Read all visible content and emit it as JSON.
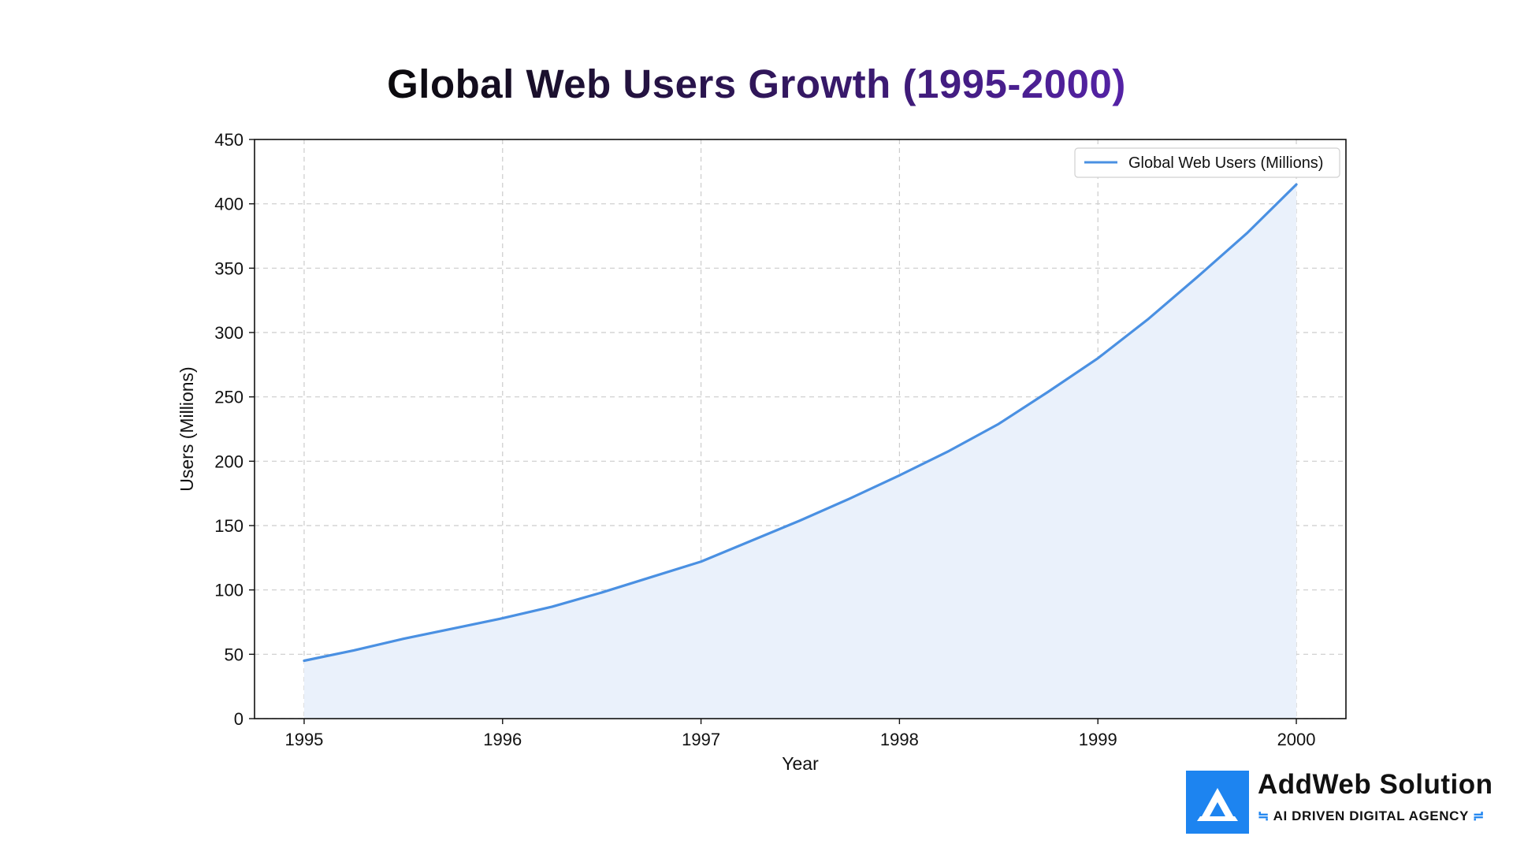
{
  "colors": {
    "line": "#4a90e2",
    "fill": "#eaf1fb",
    "grid": "#cccccc",
    "title_start": "#0a0a0a",
    "title_end": "#7b2ff7",
    "brand_blue": "#1d84f0"
  },
  "chart_data": {
    "type": "area",
    "title": "Global Web Users Growth (1995-2000)",
    "xlabel": "Year",
    "ylabel": "Users (Millions)",
    "x_ticks": [
      "1995",
      "1996",
      "1997",
      "1998",
      "1999",
      "2000"
    ],
    "y_ticks": [
      "0",
      "50",
      "100",
      "150",
      "200",
      "250",
      "300",
      "350",
      "400",
      "450"
    ],
    "xlim": [
      1994.75,
      2000.25
    ],
    "ylim": [
      0,
      450
    ],
    "grid": true,
    "grid_style": "dashed",
    "legend_position": "top-right",
    "series": [
      {
        "name": "Global Web Users (Millions)",
        "x": [
          1995,
          1995.25,
          1995.5,
          1995.75,
          1996,
          1996.25,
          1996.5,
          1996.75,
          1997,
          1997.25,
          1997.5,
          1997.75,
          1998,
          1998.25,
          1998.5,
          1998.75,
          1999,
          1999.25,
          1999.5,
          1999.75,
          2000
        ],
        "y": [
          45,
          53,
          62,
          70,
          78,
          87,
          98,
          110,
          122,
          138,
          154,
          171,
          189,
          208,
          229,
          254,
          280,
          310,
          343,
          377,
          415
        ]
      }
    ]
  },
  "brand": {
    "name": "AddWeb Solution",
    "tagline": "AI DRIVEN DIGITAL AGENCY",
    "logo_icon": "addweb-a-logo",
    "tagline_icon": "circuit-lines-icon"
  }
}
